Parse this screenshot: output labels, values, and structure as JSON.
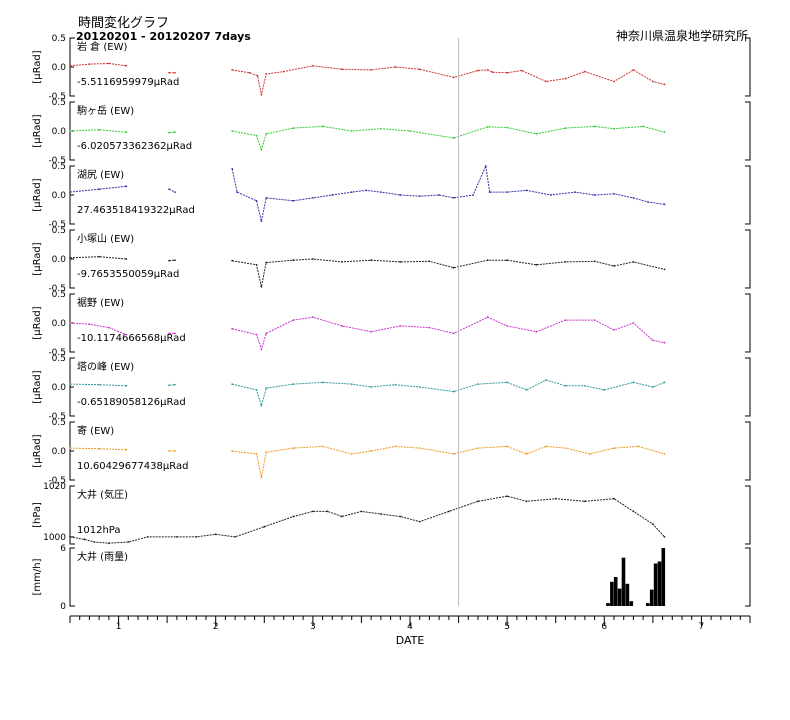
{
  "header": {
    "title": "時間変化グラフ",
    "period": "20120201 - 20120207 7days",
    "organization": "神奈川県温泉地学研究所"
  },
  "chart_data": {
    "type": "line",
    "xlabel": "DATE",
    "x_ticks": [
      "1",
      "2",
      "3",
      "4",
      "5",
      "6",
      "7"
    ],
    "xlim": [
      0.5,
      7.5
    ],
    "marker_x": 4.5,
    "grid": false,
    "panels": [
      {
        "name": "岩 倉 (EW)",
        "offset_label": "-5.5116959979μRad",
        "unit": "[μRad]",
        "color": "#cc3333",
        "ylim": [
          -0.5,
          0.5
        ],
        "ytick_labels": [
          "0.5",
          "0.0",
          "-0.5"
        ],
        "kind": "line",
        "segments": [
          [
            [
              0.5,
              0.02
            ],
            [
              0.7,
              0.05
            ],
            [
              0.9,
              0.06
            ],
            [
              1.08,
              0.02
            ]
          ],
          [
            [
              1.52,
              -0.1
            ],
            [
              1.58,
              -0.1
            ]
          ],
          [
            [
              2.17,
              -0.05
            ],
            [
              2.35,
              -0.1
            ],
            [
              2.43,
              -0.15
            ],
            [
              2.47,
              -0.48
            ],
            [
              2.52,
              -0.12
            ],
            [
              2.7,
              -0.08
            ],
            [
              3.0,
              0.02
            ],
            [
              3.3,
              -0.04
            ],
            [
              3.6,
              -0.05
            ],
            [
              3.85,
              0.0
            ],
            [
              4.1,
              -0.04
            ],
            [
              4.45,
              -0.18
            ],
            [
              4.7,
              -0.06
            ],
            [
              4.8,
              -0.05
            ],
            [
              4.85,
              -0.09
            ],
            [
              5.0,
              -0.1
            ],
            [
              5.15,
              -0.06
            ],
            [
              5.4,
              -0.25
            ],
            [
              5.6,
              -0.2
            ],
            [
              5.8,
              -0.08
            ],
            [
              6.1,
              -0.25
            ],
            [
              6.3,
              -0.05
            ],
            [
              6.5,
              -0.25
            ],
            [
              6.62,
              -0.3
            ]
          ]
        ]
      },
      {
        "name": "駒ヶ岳 (EW)",
        "offset_label": "-6.020573362362μRad",
        "unit": "[μRad]",
        "color": "#33cc33",
        "ylim": [
          -0.5,
          0.5
        ],
        "ytick_labels": [
          "0.5",
          "0.0",
          "-0.5"
        ],
        "kind": "line",
        "segments": [
          [
            [
              0.5,
              0.0
            ],
            [
              0.8,
              0.02
            ],
            [
              1.08,
              -0.02
            ]
          ],
          [
            [
              1.52,
              -0.03
            ],
            [
              1.58,
              -0.02
            ]
          ],
          [
            [
              2.17,
              0.0
            ],
            [
              2.42,
              -0.08
            ],
            [
              2.47,
              -0.32
            ],
            [
              2.52,
              -0.05
            ],
            [
              2.8,
              0.05
            ],
            [
              3.1,
              0.08
            ],
            [
              3.4,
              0.0
            ],
            [
              3.7,
              0.04
            ],
            [
              4.0,
              0.0
            ],
            [
              4.45,
              -0.12
            ],
            [
              4.8,
              0.07
            ],
            [
              5.0,
              0.06
            ],
            [
              5.3,
              -0.05
            ],
            [
              5.6,
              0.05
            ],
            [
              5.9,
              0.08
            ],
            [
              6.1,
              0.04
            ],
            [
              6.4,
              0.08
            ],
            [
              6.62,
              -0.02
            ]
          ]
        ]
      },
      {
        "name": "湖尻 (EW)",
        "offset_label": "27.463518419322μRad",
        "unit": "[μRad]",
        "color": "#3333aa",
        "ylim": [
          -0.5,
          0.5
        ],
        "ytick_labels": [
          "0.5",
          "0.0",
          "-0.5"
        ],
        "kind": "line",
        "segments": [
          [
            [
              0.5,
              0.05
            ],
            [
              0.8,
              0.1
            ],
            [
              1.08,
              0.15
            ]
          ],
          [
            [
              1.52,
              0.1
            ],
            [
              1.58,
              0.05
            ]
          ],
          [
            [
              2.17,
              0.45
            ],
            [
              2.22,
              0.05
            ],
            [
              2.42,
              -0.1
            ],
            [
              2.47,
              -0.45
            ],
            [
              2.52,
              -0.05
            ],
            [
              2.8,
              -0.1
            ],
            [
              3.0,
              -0.05
            ],
            [
              3.2,
              0.0
            ],
            [
              3.4,
              0.05
            ],
            [
              3.55,
              0.08
            ],
            [
              3.7,
              0.05
            ],
            [
              3.9,
              0.0
            ],
            [
              4.1,
              -0.02
            ],
            [
              4.3,
              0.0
            ],
            [
              4.45,
              -0.05
            ],
            [
              4.65,
              0.0
            ],
            [
              4.78,
              0.5
            ],
            [
              4.82,
              0.05
            ],
            [
              5.0,
              0.05
            ],
            [
              5.2,
              0.08
            ],
            [
              5.45,
              0.0
            ],
            [
              5.7,
              0.05
            ],
            [
              5.9,
              0.0
            ],
            [
              6.1,
              0.02
            ],
            [
              6.3,
              -0.05
            ],
            [
              6.45,
              -0.12
            ],
            [
              6.62,
              -0.16
            ]
          ]
        ]
      },
      {
        "name": "小塚山 (EW)",
        "offset_label": "-9.7653550059μRad",
        "unit": "[μRad]",
        "color": "#222222",
        "ylim": [
          -0.5,
          0.5
        ],
        "ytick_labels": [
          "0.5",
          "0.0",
          "-0.5"
        ],
        "kind": "line",
        "segments": [
          [
            [
              0.5,
              0.02
            ],
            [
              0.8,
              0.04
            ],
            [
              1.08,
              0.0
            ]
          ],
          [
            [
              1.52,
              -0.03
            ],
            [
              1.58,
              -0.02
            ]
          ],
          [
            [
              2.17,
              -0.03
            ],
            [
              2.42,
              -0.1
            ],
            [
              2.47,
              -0.48
            ],
            [
              2.52,
              -0.06
            ],
            [
              2.8,
              -0.02
            ],
            [
              3.0,
              0.0
            ],
            [
              3.3,
              -0.05
            ],
            [
              3.6,
              -0.02
            ],
            [
              3.9,
              -0.05
            ],
            [
              4.2,
              -0.04
            ],
            [
              4.45,
              -0.15
            ],
            [
              4.8,
              -0.02
            ],
            [
              5.0,
              -0.02
            ],
            [
              5.3,
              -0.1
            ],
            [
              5.6,
              -0.05
            ],
            [
              5.9,
              -0.04
            ],
            [
              6.1,
              -0.12
            ],
            [
              6.3,
              -0.05
            ],
            [
              6.62,
              -0.18
            ]
          ]
        ]
      },
      {
        "name": "裾野 (EW)",
        "offset_label": "-10.1174666568μRad",
        "unit": "[μRad]",
        "color": "#cc33cc",
        "ylim": [
          -0.5,
          0.5
        ],
        "ytick_labels": [
          "0.5",
          "0.0",
          "-0.5"
        ],
        "kind": "line",
        "segments": [
          [
            [
              0.5,
              0.0
            ],
            [
              0.7,
              -0.02
            ],
            [
              0.9,
              -0.08
            ],
            [
              1.08,
              -0.2
            ]
          ],
          [
            [
              1.52,
              -0.18
            ],
            [
              1.58,
              -0.18
            ]
          ],
          [
            [
              2.17,
              -0.1
            ],
            [
              2.42,
              -0.2
            ],
            [
              2.47,
              -0.45
            ],
            [
              2.52,
              -0.18
            ],
            [
              2.8,
              0.05
            ],
            [
              3.0,
              0.1
            ],
            [
              3.3,
              -0.05
            ],
            [
              3.6,
              -0.15
            ],
            [
              3.9,
              -0.05
            ],
            [
              4.2,
              -0.08
            ],
            [
              4.45,
              -0.18
            ],
            [
              4.8,
              0.1
            ],
            [
              5.0,
              -0.05
            ],
            [
              5.3,
              -0.15
            ],
            [
              5.6,
              0.05
            ],
            [
              5.9,
              0.05
            ],
            [
              6.1,
              -0.12
            ],
            [
              6.3,
              0.0
            ],
            [
              6.5,
              -0.3
            ],
            [
              6.62,
              -0.34
            ]
          ]
        ]
      },
      {
        "name": "塔の峰 (EW)",
        "offset_label": "-0.65189058126μRad",
        "unit": "[μRad]",
        "color": "#339999",
        "ylim": [
          -0.5,
          0.5
        ],
        "ytick_labels": [
          "0.5",
          "0.0",
          "-0.5"
        ],
        "kind": "line",
        "segments": [
          [
            [
              0.5,
              0.05
            ],
            [
              0.8,
              0.04
            ],
            [
              1.08,
              0.02
            ]
          ],
          [
            [
              1.52,
              0.03
            ],
            [
              1.58,
              0.04
            ]
          ],
          [
            [
              2.17,
              0.05
            ],
            [
              2.42,
              -0.05
            ],
            [
              2.47,
              -0.32
            ],
            [
              2.52,
              -0.02
            ],
            [
              2.8,
              0.05
            ],
            [
              3.1,
              0.08
            ],
            [
              3.4,
              0.05
            ],
            [
              3.6,
              0.0
            ],
            [
              3.85,
              0.04
            ],
            [
              4.1,
              0.0
            ],
            [
              4.45,
              -0.08
            ],
            [
              4.7,
              0.05
            ],
            [
              5.0,
              0.08
            ],
            [
              5.2,
              -0.05
            ],
            [
              5.4,
              0.12
            ],
            [
              5.6,
              0.02
            ],
            [
              5.8,
              0.02
            ],
            [
              6.0,
              -0.05
            ],
            [
              6.3,
              0.08
            ],
            [
              6.5,
              0.0
            ],
            [
              6.62,
              0.08
            ]
          ]
        ]
      },
      {
        "name": "寄 (EW)",
        "offset_label": "10.60429677438μRad",
        "unit": "[μRad]",
        "color": "#ee9922",
        "ylim": [
          -0.5,
          0.5
        ],
        "ytick_labels": [
          "0.5",
          "0.0",
          "-0.5"
        ],
        "kind": "line",
        "segments": [
          [
            [
              0.5,
              0.05
            ],
            [
              0.8,
              0.04
            ],
            [
              1.08,
              0.02
            ]
          ],
          [
            [
              1.52,
              0.0
            ],
            [
              1.58,
              0.0
            ]
          ],
          [
            [
              2.17,
              0.0
            ],
            [
              2.42,
              -0.05
            ],
            [
              2.47,
              -0.45
            ],
            [
              2.52,
              -0.02
            ],
            [
              2.8,
              0.05
            ],
            [
              3.1,
              0.08
            ],
            [
              3.4,
              -0.05
            ],
            [
              3.6,
              0.0
            ],
            [
              3.85,
              0.08
            ],
            [
              4.1,
              0.05
            ],
            [
              4.45,
              -0.05
            ],
            [
              4.7,
              0.05
            ],
            [
              5.0,
              0.08
            ],
            [
              5.2,
              -0.05
            ],
            [
              5.4,
              0.08
            ],
            [
              5.6,
              0.05
            ],
            [
              5.85,
              -0.05
            ],
            [
              6.1,
              0.05
            ],
            [
              6.35,
              0.08
            ],
            [
              6.62,
              -0.05
            ]
          ]
        ]
      },
      {
        "name": "大井 (気圧)",
        "offset_label": "1012hPa",
        "unit": "[hPa]",
        "color": "#222222",
        "ylim": [
          997.2,
          1020
        ],
        "ytick_labels": [
          "1020",
          "1000"
        ],
        "ytick_values": [
          1020,
          1000
        ],
        "kind": "line",
        "segments": [
          [
            [
              0.5,
              1000
            ],
            [
              0.65,
              999.0
            ],
            [
              0.75,
              998.0
            ],
            [
              0.9,
              997.5
            ],
            [
              1.1,
              998.0
            ],
            [
              1.3,
              1000
            ],
            [
              1.6,
              1000
            ],
            [
              1.8,
              1000
            ],
            [
              2.0,
              1001
            ],
            [
              2.2,
              1000
            ],
            [
              2.5,
              1004
            ],
            [
              2.8,
              1008
            ],
            [
              3.0,
              1010
            ],
            [
              3.15,
              1010
            ],
            [
              3.3,
              1008
            ],
            [
              3.5,
              1010
            ],
            [
              3.7,
              1009
            ],
            [
              3.9,
              1008
            ],
            [
              4.1,
              1006
            ],
            [
              4.4,
              1010
            ],
            [
              4.7,
              1014
            ],
            [
              5.0,
              1016
            ],
            [
              5.2,
              1014
            ],
            [
              5.5,
              1015
            ],
            [
              5.8,
              1014
            ],
            [
              6.1,
              1015
            ],
            [
              6.3,
              1010
            ],
            [
              6.5,
              1005
            ],
            [
              6.62,
              1000
            ]
          ]
        ]
      },
      {
        "name": "大井 (雨量)",
        "unit": "[mm/h]",
        "color": "#000000",
        "ylim": [
          0,
          6
        ],
        "ytick_labels": [
          "6",
          "0"
        ],
        "ytick_values": [
          6,
          0
        ],
        "kind": "bar",
        "bars": [
          [
            6.04,
            0.3
          ],
          [
            6.08,
            2.5
          ],
          [
            6.12,
            3.0
          ],
          [
            6.16,
            1.8
          ],
          [
            6.2,
            5.0
          ],
          [
            6.24,
            2.3
          ],
          [
            6.28,
            0.5
          ],
          [
            6.45,
            0.3
          ],
          [
            6.49,
            1.7
          ],
          [
            6.53,
            4.4
          ],
          [
            6.57,
            4.6
          ],
          [
            6.61,
            6.0
          ]
        ]
      }
    ]
  }
}
